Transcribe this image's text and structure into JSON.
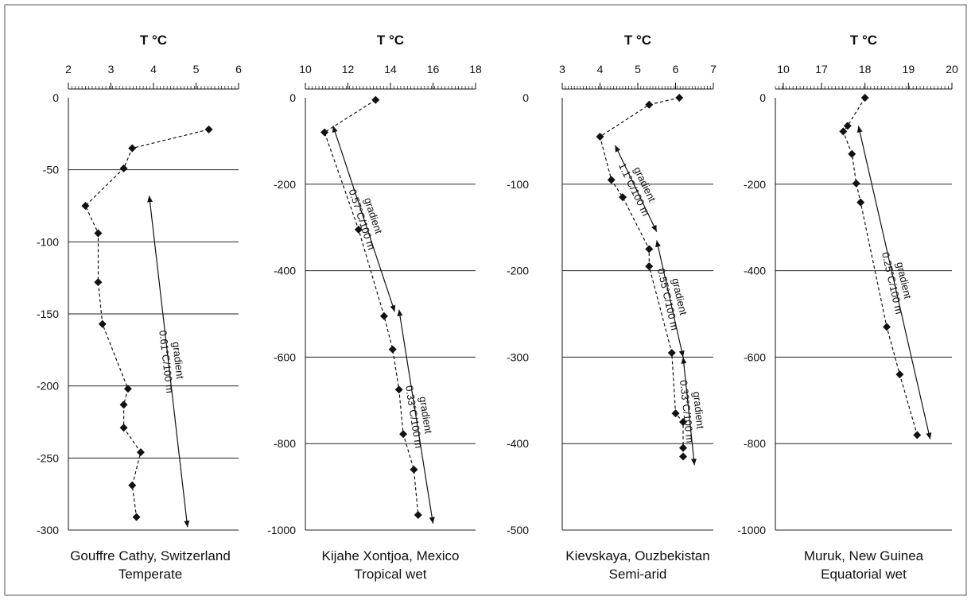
{
  "chart_data": [
    {
      "type": "scatter",
      "title": "T °C",
      "caption": [
        "Gouffre Cathy, Switzerland",
        "Temperate"
      ],
      "xlim": [
        2,
        6
      ],
      "xticks": [
        2,
        3,
        4,
        5,
        6
      ],
      "ylim": [
        -300,
        0
      ],
      "yticks": [
        0,
        -50,
        -100,
        -150,
        -200,
        -250,
        -300
      ],
      "points": [
        {
          "x": 5.3,
          "y": -22
        },
        {
          "x": 3.5,
          "y": -35
        },
        {
          "x": 3.3,
          "y": -49
        },
        {
          "x": 2.4,
          "y": -75
        },
        {
          "x": 2.7,
          "y": -94
        },
        {
          "x": 2.7,
          "y": -128
        },
        {
          "x": 2.8,
          "y": -157
        },
        {
          "x": 3.4,
          "y": -202
        },
        {
          "x": 3.3,
          "y": -213
        },
        {
          "x": 3.3,
          "y": -229
        },
        {
          "x": 3.7,
          "y": -246
        },
        {
          "x": 3.5,
          "y": -269
        },
        {
          "x": 3.6,
          "y": -291
        }
      ],
      "gradients": [
        {
          "label": [
            "gradient",
            "0.61°C/100 m"
          ],
          "from": {
            "x": 3.9,
            "y": -68
          },
          "to": {
            "x": 4.8,
            "y": -298
          }
        }
      ]
    },
    {
      "type": "scatter",
      "title": "T °C",
      "caption": [
        "Kijahe Xontjoa, Mexico",
        "Tropical wet"
      ],
      "xlim": [
        10,
        18
      ],
      "xticks": [
        10,
        12,
        14,
        16,
        18
      ],
      "ylim": [
        -1000,
        0
      ],
      "yticks": [
        0,
        -200,
        -400,
        -600,
        -800,
        -1000
      ],
      "points": [
        {
          "x": 13.3,
          "y": -5
        },
        {
          "x": 10.9,
          "y": -80
        },
        {
          "x": 12.5,
          "y": -305
        },
        {
          "x": 13.7,
          "y": -505
        },
        {
          "x": 14.1,
          "y": -582
        },
        {
          "x": 14.4,
          "y": -675
        },
        {
          "x": 14.6,
          "y": -778
        },
        {
          "x": 15.1,
          "y": -860
        },
        {
          "x": 15.3,
          "y": -965
        }
      ],
      "gradients": [
        {
          "label": [
            "gradient",
            "0.57°C/100 m"
          ],
          "from": {
            "x": 11.3,
            "y": -65
          },
          "to": {
            "x": 14.2,
            "y": -495
          }
        },
        {
          "label": [
            "gradient",
            "0.33°C/100 m"
          ],
          "from": {
            "x": 14.4,
            "y": -490
          },
          "to": {
            "x": 16.0,
            "y": -985
          }
        }
      ]
    },
    {
      "type": "scatter",
      "title": "T °C",
      "caption": [
        "Kievskaya, Ouzbekistan",
        "Semi-arid"
      ],
      "xlim": [
        3,
        7
      ],
      "xticks": [
        3,
        4,
        5,
        6,
        7
      ],
      "ylim": [
        -500,
        0
      ],
      "yticks": [
        0,
        -100,
        -200,
        -300,
        -400,
        -500
      ],
      "points": [
        {
          "x": 6.1,
          "y": 0
        },
        {
          "x": 5.3,
          "y": -8
        },
        {
          "x": 4.0,
          "y": -45
        },
        {
          "x": 4.3,
          "y": -95
        },
        {
          "x": 4.6,
          "y": -115
        },
        {
          "x": 5.3,
          "y": -175
        },
        {
          "x": 5.3,
          "y": -195
        },
        {
          "x": 5.9,
          "y": -295
        },
        {
          "x": 6.0,
          "y": -365
        },
        {
          "x": 6.2,
          "y": -375
        },
        {
          "x": 6.2,
          "y": -405
        },
        {
          "x": 6.2,
          "y": -415
        }
      ],
      "gradients": [
        {
          "label": [
            "gradient",
            "1.1°C/100 m"
          ],
          "from": {
            "x": 4.4,
            "y": -55
          },
          "to": {
            "x": 5.5,
            "y": -155
          }
        },
        {
          "label": [
            "gradient",
            "0.55°C/100 m"
          ],
          "from": {
            "x": 5.5,
            "y": -165
          },
          "to": {
            "x": 6.2,
            "y": -300
          }
        },
        {
          "label": [
            "gradient",
            "0.33°C/100 m"
          ],
          "from": {
            "x": 6.2,
            "y": -300
          },
          "to": {
            "x": 6.5,
            "y": -425
          }
        }
      ]
    },
    {
      "type": "scatter",
      "title": "T °C",
      "caption": [
        "Muruk, New Guinea",
        "Equatorial wet"
      ],
      "xlim": [
        10,
        20
      ],
      "xticks": [
        10,
        17,
        18,
        19,
        20
      ],
      "ylim": [
        -1000,
        0
      ],
      "yticks": [
        0,
        -200,
        -400,
        -600,
        -800,
        -1000
      ],
      "points": [
        {
          "x": 18.0,
          "y": 0
        },
        {
          "x": 17.6,
          "y": -65
        },
        {
          "x": 17.5,
          "y": -78
        },
        {
          "x": 17.7,
          "y": -130
        },
        {
          "x": 17.8,
          "y": -198
        },
        {
          "x": 17.9,
          "y": -242
        },
        {
          "x": 18.5,
          "y": -530
        },
        {
          "x": 18.8,
          "y": -640
        },
        {
          "x": 19.2,
          "y": -780
        }
      ],
      "gradients": [
        {
          "label": [
            "gradient",
            "0.25°C/100 m"
          ],
          "from": {
            "x": 17.85,
            "y": -65
          },
          "to": {
            "x": 19.5,
            "y": -790
          }
        }
      ]
    }
  ]
}
